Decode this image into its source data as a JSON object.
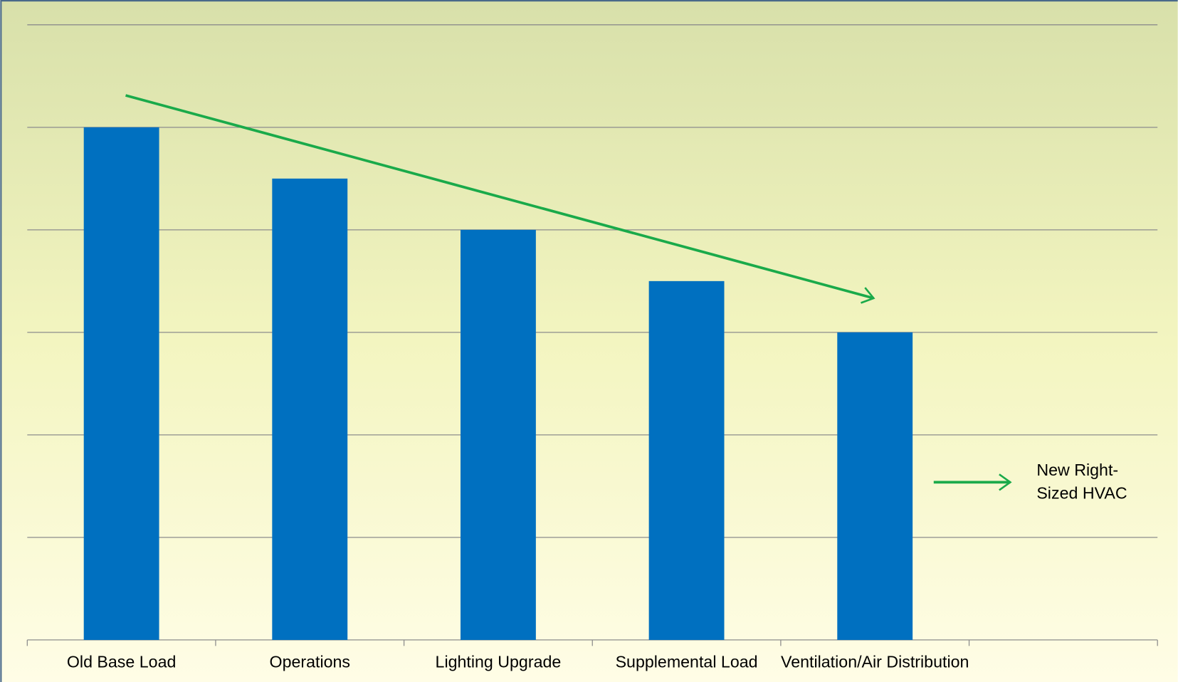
{
  "chart_data": {
    "type": "bar",
    "categories": [
      "Old Base Load",
      "Operations",
      "Lighting Upgrade",
      "Supplemental Load",
      "Ventilation/Air Distribution",
      null
    ],
    "values": [
      5,
      4.5,
      4,
      3.5,
      3,
      null
    ],
    "color": "#0070c0",
    "ylim": [
      0,
      6
    ],
    "yticks": [
      0,
      1,
      2,
      3,
      4,
      5,
      6
    ],
    "grid": true,
    "annotation": "New Right-Sized HVAC"
  }
}
